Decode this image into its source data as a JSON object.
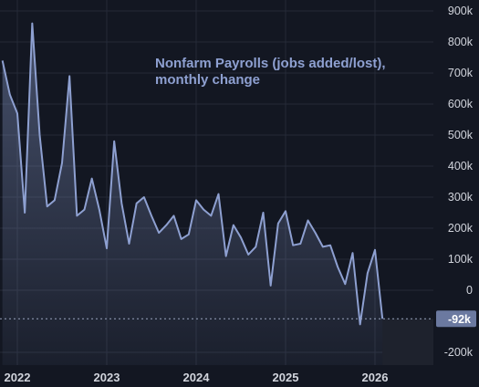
{
  "chart_data": {
    "type": "area",
    "title": "Nonfarm Payrolls (jobs added/lost), monthly change",
    "title_lines": [
      "Nonfarm Payrolls (jobs added/lost),",
      "monthly change"
    ],
    "xlabel": "",
    "ylabel": "",
    "ylim": [
      -230,
      950
    ],
    "yticks": [
      900,
      800,
      700,
      600,
      500,
      400,
      300,
      200,
      100,
      0,
      -200
    ],
    "ytick_labels": [
      "900k",
      "800k",
      "700k",
      "600k",
      "500k",
      "400k",
      "300k",
      "200k",
      "100k",
      "0",
      "-200k"
    ],
    "xticks": [
      "2022-01",
      "2023-01",
      "2024-01",
      "2025-01",
      "2026-01"
    ],
    "xtick_labels": [
      "2022",
      "2023",
      "2024",
      "2025",
      "2026"
    ],
    "last_value_label": "-92k",
    "last_value": -92,
    "grid": true,
    "series": [
      {
        "x": [
          "2021-11",
          "2021-12",
          "2022-01",
          "2022-02",
          "2022-03",
          "2022-04",
          "2022-05",
          "2022-06",
          "2022-07",
          "2022-08",
          "2022-09",
          "2022-10",
          "2022-11",
          "2022-12",
          "2023-01",
          "2023-02",
          "2023-03",
          "2023-04",
          "2023-05",
          "2023-06",
          "2023-07",
          "2023-08",
          "2023-09",
          "2023-10",
          "2023-11",
          "2023-12",
          "2024-01",
          "2024-02",
          "2024-03",
          "2024-04",
          "2024-05",
          "2024-06",
          "2024-07",
          "2024-08",
          "2024-09",
          "2024-10",
          "2024-11",
          "2024-12",
          "2025-01",
          "2025-02",
          "2025-03",
          "2025-04",
          "2025-05",
          "2025-06",
          "2025-07",
          "2025-08",
          "2025-09",
          "2025-10",
          "2025-11",
          "2025-12",
          "2026-01",
          "2026-02"
        ],
        "values": [
          740,
          630,
          570,
          250,
          860,
          500,
          270,
          290,
          410,
          690,
          240,
          260,
          360,
          260,
          135,
          480,
          280,
          150,
          280,
          300,
          240,
          185,
          210,
          240,
          165,
          180,
          290,
          260,
          240,
          310,
          110,
          210,
          170,
          115,
          140,
          250,
          15,
          215,
          255,
          145,
          150,
          225,
          185,
          140,
          145,
          75,
          20,
          120,
          -110,
          55,
          130,
          -92
        ]
      }
    ],
    "colors": {
      "background": "#131722",
      "line": "#8ea0d1",
      "grid": "#252a37",
      "text": "#d1d4dc",
      "last_label_bg": "#6b79a0",
      "future_bg": "#1e222d"
    }
  }
}
